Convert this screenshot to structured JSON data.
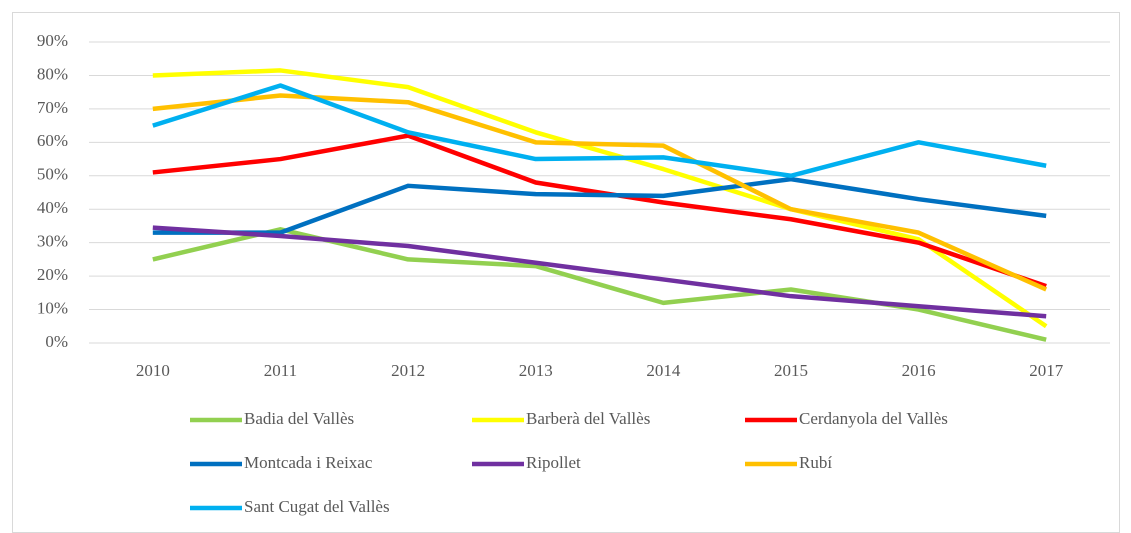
{
  "chart_data": {
    "type": "line",
    "categories": [
      "2010",
      "2011",
      "2012",
      "2013",
      "2014",
      "2015",
      "2016",
      "2017"
    ],
    "series": [
      {
        "name": "Badia del Vallès",
        "color": "#92d050",
        "values": [
          25,
          34,
          25,
          23,
          12,
          16,
          10,
          1
        ]
      },
      {
        "name": "Barberà del Vallès",
        "color": "#ffff00",
        "values": [
          80,
          81.5,
          76.5,
          63,
          52,
          40,
          31,
          5
        ]
      },
      {
        "name": "Cerdanyola del Vallès",
        "color": "#ff0000",
        "values": [
          51,
          55,
          62,
          48,
          42,
          37,
          30,
          17
        ]
      },
      {
        "name": "Montcada i Reixac",
        "color": "#0070c0",
        "values": [
          33,
          33,
          47,
          44.5,
          44,
          49,
          43,
          38
        ]
      },
      {
        "name": "Ripollet",
        "color": "#7030a0",
        "values": [
          34.5,
          32,
          29,
          24,
          19,
          14,
          11,
          8
        ]
      },
      {
        "name": "Rubí",
        "color": "#ffc000",
        "values": [
          70,
          74,
          72,
          60,
          59,
          40,
          33,
          16
        ]
      },
      {
        "name": "Sant Cugat del Vallès",
        "color": "#00b0f0",
        "values": [
          65,
          77,
          63,
          55,
          55.5,
          50,
          60,
          53
        ]
      }
    ],
    "ylim": [
      0,
      90
    ],
    "yticks": [
      {
        "value": 0,
        "label": "0%"
      },
      {
        "value": 10,
        "label": "10%"
      },
      {
        "value": 20,
        "label": "20%"
      },
      {
        "value": 30,
        "label": "30%"
      },
      {
        "value": 40,
        "label": "40%"
      },
      {
        "value": 50,
        "label": "50%"
      },
      {
        "value": 60,
        "label": "60%"
      },
      {
        "value": 70,
        "label": "70%"
      },
      {
        "value": 80,
        "label": "80%"
      },
      {
        "value": 90,
        "label": "90%"
      }
    ],
    "grid": true
  }
}
